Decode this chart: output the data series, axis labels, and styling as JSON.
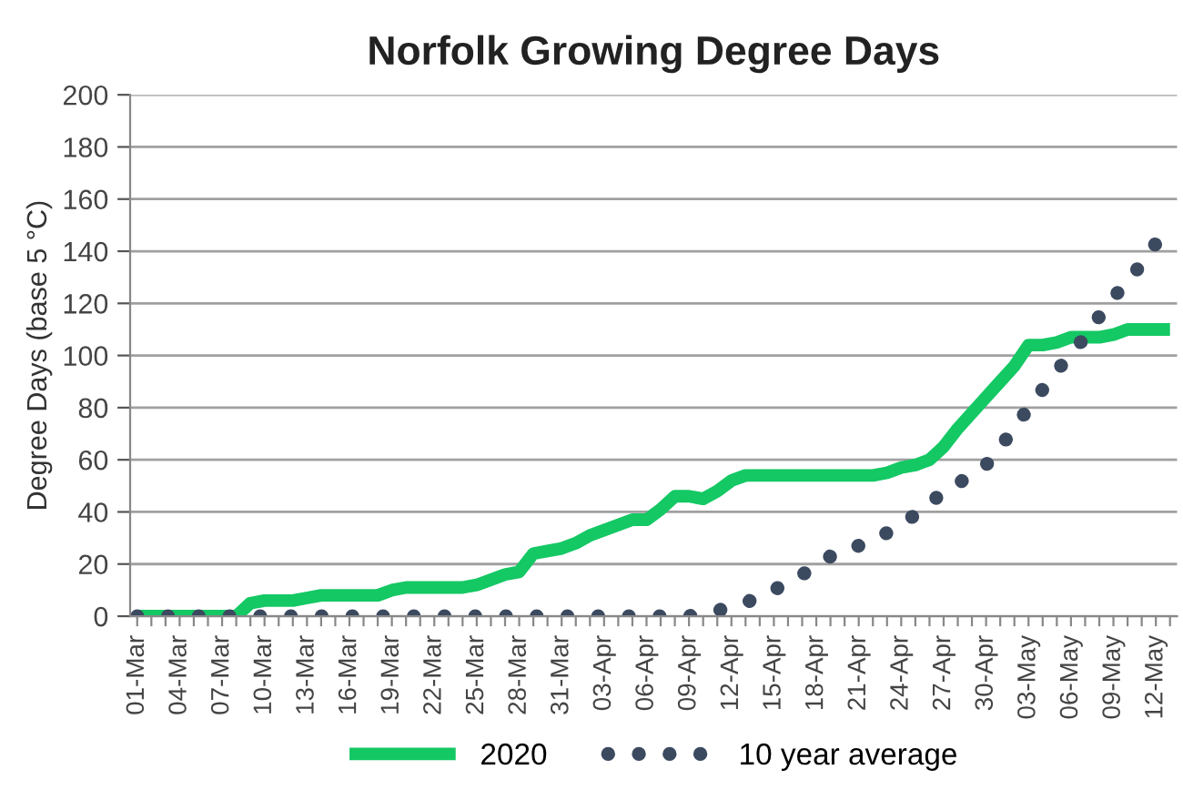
{
  "chart_data": {
    "type": "line",
    "title": "Norfolk Growing Degree Days",
    "ylabel": "Degree Days (base 5 °C)",
    "categories": [
      "01-Mar",
      null,
      null,
      "04-Mar",
      null,
      null,
      "07-Mar",
      null,
      null,
      "10-Mar",
      null,
      null,
      "13-Mar",
      null,
      null,
      "16-Mar",
      null,
      null,
      "19-Mar",
      null,
      null,
      "22-Mar",
      null,
      null,
      "25-Mar",
      null,
      null,
      "28-Mar",
      null,
      null,
      "31-Mar",
      null,
      null,
      "03-Apr",
      null,
      null,
      "06-Apr",
      null,
      null,
      "09-Apr",
      null,
      null,
      "12-Apr",
      null,
      null,
      "15-Apr",
      null,
      null,
      "18-Apr",
      null,
      null,
      "21-Apr",
      null,
      null,
      "24-Apr",
      null,
      null,
      "27-Apr",
      null,
      null,
      "30-Apr",
      null,
      null,
      "03-May",
      null,
      null,
      "06-May",
      null,
      null,
      "09-May",
      null,
      null,
      "12-May",
      null
    ],
    "series": [
      {
        "name": "2020",
        "color": "#14c864",
        "line_style": "solid",
        "values": [
          0,
          0,
          0,
          0,
          0,
          0,
          0,
          0,
          5,
          6,
          6,
          6,
          7,
          8,
          8,
          8,
          8,
          8,
          10,
          11,
          11,
          11,
          11,
          11,
          12,
          14,
          16,
          17,
          24,
          25,
          26,
          28,
          31,
          33,
          35,
          37,
          37,
          41,
          46,
          46,
          45,
          48,
          52,
          54,
          54,
          54,
          54,
          54,
          54,
          54,
          54,
          54,
          54,
          55,
          57,
          58,
          60,
          65,
          72,
          78,
          84,
          90,
          96,
          104,
          104,
          105,
          107,
          107,
          107,
          108,
          110,
          110,
          110,
          110
        ]
      },
      {
        "name": "10 year average",
        "color": "#3c4a60",
        "line_style": "dotted",
        "values": [
          0,
          0,
          0,
          0,
          0,
          0,
          0,
          0,
          0,
          0,
          0,
          0,
          0,
          0,
          0,
          0,
          0,
          0,
          0,
          0,
          0,
          0,
          0,
          0,
          0,
          0,
          0,
          0,
          0,
          0,
          0,
          0,
          0,
          0,
          0,
          0,
          0,
          0,
          0,
          0,
          1,
          2,
          4,
          5,
          8,
          10,
          13,
          16,
          19,
          23,
          26,
          27,
          29,
          32,
          35,
          39,
          43,
          48,
          51,
          54,
          58,
          65,
          72,
          80,
          87,
          94,
          101,
          107,
          115,
          122,
          129,
          135,
          143,
          null
        ]
      }
    ],
    "ylim": [
      0,
      200
    ],
    "yticks": [
      0,
      20,
      40,
      60,
      80,
      100,
      120,
      140,
      160,
      180,
      200
    ],
    "grid": "y",
    "legend": "bottom",
    "marker": "none"
  }
}
